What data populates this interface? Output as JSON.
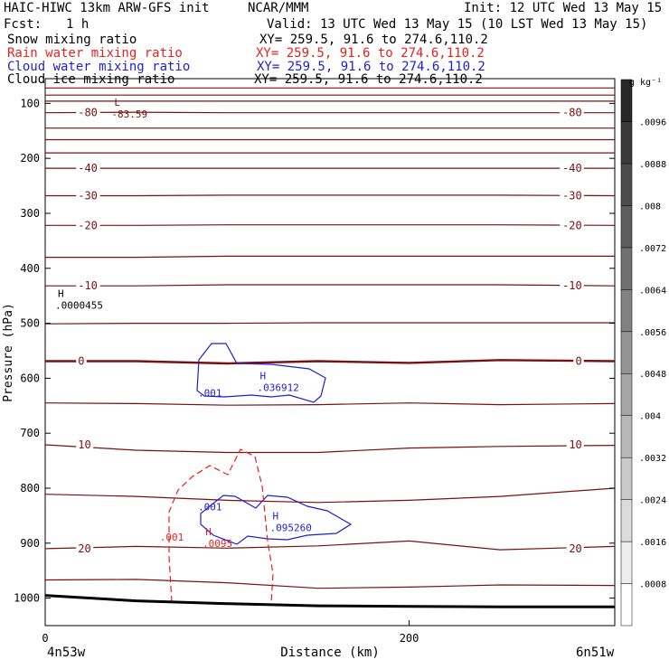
{
  "header": {
    "model": "HAIC-HIWC 13km ARW-GFS init",
    "center": "NCAR/MMM",
    "init": "Init: 12 UTC Wed 13 May 15",
    "fcst_label": "Fcst:",
    "fcst_value": "1 h",
    "valid": "Valid: 13 UTC Wed 13 May 15 (10 LST Wed 13 May 15)"
  },
  "fields": [
    {
      "label": "Snow mixing ratio",
      "xy": "XY= 259.5, 91.6 to 274.6,110.2",
      "color": "#000000"
    },
    {
      "label": "Rain water mixing ratio",
      "xy": "XY= 259.5, 91.6 to 274.6,110.2",
      "color": "#e8211f"
    },
    {
      "label": "Cloud water mixing ratio",
      "xy": "XY= 259.5, 91.6 to 274.6,110.2",
      "color": "#1f1fd0"
    },
    {
      "label": "Cloud ice mixing ratio",
      "xy": "XY= 259.5, 91.6 to 274.6,110.2",
      "color": "#000000"
    }
  ],
  "chart_data": {
    "type": "line",
    "title": "",
    "xlabel": "Distance (km)",
    "ylabel": "Pressure (hPa)",
    "xlim": [
      0,
      313
    ],
    "ylim": [
      1050,
      55
    ],
    "x_ticks": [
      0,
      200
    ],
    "y_ticks": [
      100,
      200,
      300,
      400,
      500,
      600,
      700,
      800,
      900,
      1000
    ],
    "x_start_label": "4n53w",
    "x_end_label": "6n51w",
    "colorbar": {
      "unit": "g kg⁻¹",
      "levels": [
        ".0008",
        ".0016",
        ".0024",
        ".0032",
        ".004",
        ".0048",
        ".0056",
        ".0064",
        ".0072",
        ".008",
        ".0088",
        ".0096"
      ]
    },
    "temperature_labels": [
      "-83.59",
      "-80",
      "-40",
      "-30",
      "-20",
      "-10",
      "0",
      "10",
      "20"
    ],
    "extrema": [
      {
        "type": "L",
        "value": "-83.59",
        "x": 34,
        "p": 114,
        "color": "#7a1010"
      },
      {
        "type": "H",
        "value": ".0000455",
        "x": 3,
        "p": 462,
        "color": "#000000"
      },
      {
        "type": "H",
        "value": ".036912",
        "x": 114,
        "p": 612,
        "color": "#1f1fd0"
      },
      {
        "type": "H",
        "value": ".0095",
        "x": 84,
        "p": 895,
        "color": "#e8211f"
      },
      {
        "type": "H",
        "value": ".095260",
        "x": 121,
        "p": 867,
        "color": "#1f1fd0"
      }
    ],
    "contour_labels": [
      {
        "text": ".001",
        "x": 84,
        "p": 633,
        "color": "#1f1fd0"
      },
      {
        "text": ".001",
        "x": 84,
        "p": 840,
        "color": "#1f1fd0"
      },
      {
        "text": ".001",
        "x": 63,
        "p": 895,
        "color": "#e8211f"
      }
    ],
    "isotherms": [
      {
        "name": "-83.59",
        "label": "",
        "p": [
          72,
          72,
          72,
          72,
          72,
          72,
          72
        ]
      },
      {
        "name": "-80a",
        "label": "",
        "p": [
          85,
          85,
          85,
          85,
          85,
          85,
          85
        ]
      },
      {
        "name": "-80b",
        "label": "",
        "p": [
          96,
          96,
          96,
          96,
          96,
          96,
          96
        ]
      },
      {
        "name": "-80",
        "label": "-80",
        "p": [
          117,
          116,
          117,
          117,
          117,
          117,
          117
        ]
      },
      {
        "name": "-70",
        "label": "",
        "p": [
          145,
          145,
          145,
          145,
          145,
          145,
          145
        ]
      },
      {
        "name": "-60",
        "label": "",
        "p": [
          166,
          166,
          166,
          166,
          166,
          166,
          166
        ]
      },
      {
        "name": "-50",
        "label": "",
        "p": [
          190,
          190,
          190,
          190,
          190,
          190,
          190
        ]
      },
      {
        "name": "-40",
        "label": "-40",
        "p": [
          218,
          218,
          218,
          218,
          218,
          218,
          218
        ]
      },
      {
        "name": "-30",
        "label": "-30",
        "p": [
          268,
          268,
          267,
          267,
          267,
          267,
          268
        ]
      },
      {
        "name": "-20",
        "label": "-20",
        "p": [
          322,
          322,
          321,
          321,
          321,
          321,
          322
        ]
      },
      {
        "name": "-15",
        "label": "",
        "p": [
          380,
          380,
          378,
          378,
          378,
          378,
          378
        ]
      },
      {
        "name": "-10",
        "label": "-10",
        "p": [
          432,
          432,
          430,
          430,
          430,
          430,
          432
        ]
      },
      {
        "name": "-5",
        "label": "",
        "p": [
          501,
          500,
          500,
          499,
          499,
          499,
          499
        ]
      },
      {
        "name": "0",
        "label": "0",
        "p": [
          569,
          569,
          573,
          569,
          572,
          567,
          569
        ]
      },
      {
        "name": "5",
        "label": "",
        "p": [
          645,
          646,
          649,
          648,
          645,
          648,
          646
        ]
      },
      {
        "name": "10",
        "label": "10",
        "p": [
          721,
          731,
          735,
          735,
          727,
          724,
          722
        ]
      },
      {
        "name": "15",
        "label": "",
        "p": [
          811,
          815,
          822,
          826,
          822,
          815,
          800
        ]
      },
      {
        "name": "20",
        "label": "20",
        "p": [
          910,
          906,
          909,
          905,
          896,
          912,
          906
        ]
      },
      {
        "name": "25",
        "label": "",
        "p": [
          967,
          966,
          972,
          982,
          980,
          976,
          977
        ]
      }
    ],
    "isotherm_x": [
      0,
      50,
      100,
      150,
      200,
      250,
      313
    ],
    "surface": {
      "x": [
        0,
        50,
        100,
        150,
        200,
        250,
        313
      ],
      "p": [
        995,
        1005,
        1010,
        1014,
        1015,
        1016,
        1016
      ]
    }
  }
}
